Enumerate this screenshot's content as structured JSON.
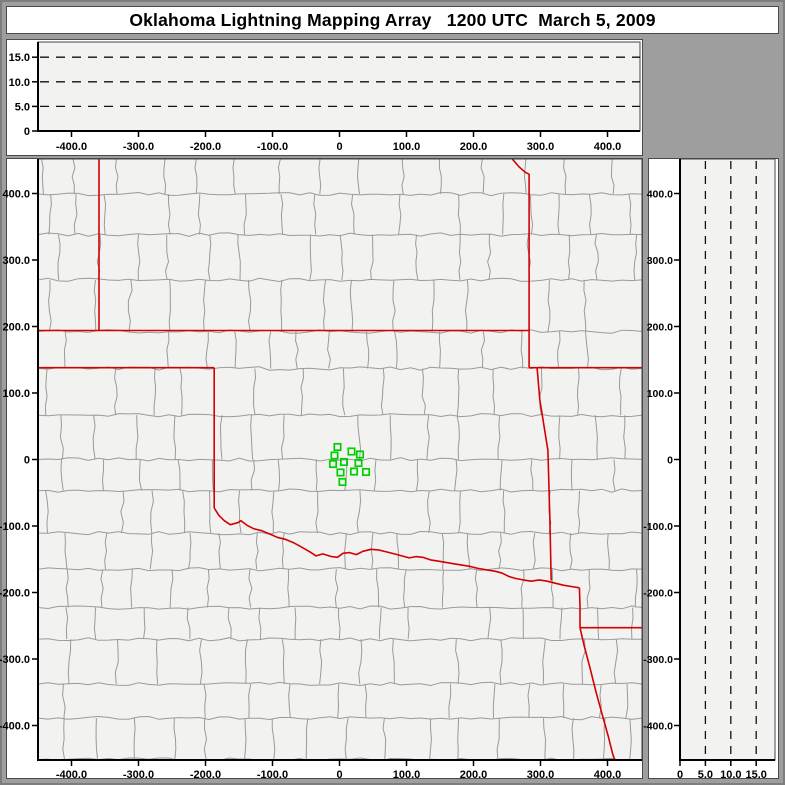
{
  "window": {
    "title": "Oklahoma Lightning Mapping Array   1200 UTC  March 5, 2009"
  },
  "colors": {
    "frame": "#9e9e9e",
    "card_bg": "#ffffff",
    "card_border": "#4a4a4a",
    "plot_bg": "#f2f2f1",
    "plot_border": "#444444",
    "axis": "#000000",
    "dashed_gridline": "#111111",
    "county_line": "#9a9a9a",
    "state_line": "#d40000",
    "station_marker": "#00cf00",
    "text": "#000000"
  },
  "chart_data": [
    {
      "id": "ew_altitude_cross_section",
      "type": "scatter",
      "region": "top",
      "description": "East-West vertical cross section, altitude (km) vs east-west distance (km); no lightning sources plotted at this time",
      "xlim": [
        -451,
        453
      ],
      "ylim": [
        0,
        18.1
      ],
      "xticks": {
        "values": [
          -400,
          -300,
          -200,
          -100,
          0,
          100,
          200,
          300,
          400
        ],
        "labels": [
          "-400.0",
          "-300.0",
          "-200.0",
          "-100.0",
          "0",
          "100.0",
          "200.0",
          "300.0",
          "400.0"
        ]
      },
      "yticks": {
        "values": [
          15,
          10,
          5,
          0
        ],
        "labels": [
          "15.0",
          "10.0",
          "5.0",
          "0"
        ]
      },
      "dashed_gridlines_alt_km": [
        5,
        10,
        15
      ],
      "points": []
    },
    {
      "id": "plan_view_map",
      "type": "scatter",
      "region": "center",
      "description": "Plan view map centered on central Oklahoma with county lines, red state boundaries, and green LMA station squares; no lightning sources plotted",
      "xlim": [
        -451,
        453
      ],
      "ylim": [
        -452,
        453
      ],
      "xticks": {
        "values": [
          -400,
          -300,
          -200,
          -100,
          0,
          100,
          200,
          300,
          400
        ],
        "labels": [
          "-400.0",
          "-300.0",
          "-200.0",
          "-100.0",
          "0",
          "100.0",
          "200.0",
          "300.0",
          "400.0"
        ]
      },
      "yticks": {
        "values": [
          400,
          300,
          200,
          100,
          0,
          -100,
          -200,
          -300,
          -400
        ],
        "labels": [
          "400.0",
          "300.0",
          "200.0",
          "100.0",
          "0",
          "-100.0",
          "-200.0",
          "-300.0",
          "-400.0"
        ]
      },
      "lma_stations_km": [
        [
          -3.0,
          18.8
        ],
        [
          17.9,
          12.0
        ],
        [
          30.6,
          7.5
        ],
        [
          -7.5,
          6.0
        ],
        [
          6.7,
          -3.8
        ],
        [
          -9.7,
          -6.8
        ],
        [
          28.4,
          -5.3
        ],
        [
          1.5,
          -19.5
        ],
        [
          21.6,
          -18.0
        ],
        [
          39.6,
          -18.8
        ],
        [
          4.5,
          -33.8
        ]
      ],
      "state_boundaries_km": {
        "co_ks_border": [
          [
            -359,
            453
          ],
          [
            -359,
            194
          ]
        ],
        "ks_ok_border_37N": [
          [
            -451,
            194
          ],
          [
            283,
            194
          ]
        ],
        "ok_tx_panhandle_36_5N": [
          [
            -451,
            138
          ],
          [
            -187,
            138
          ]
        ],
        "ok_tx_100W_meridian": [
          [
            -187,
            138
          ],
          [
            -187,
            -73
          ]
        ],
        "red_river_ok_tx": [
          [
            -187,
            -73
          ],
          [
            -180,
            -84
          ],
          [
            -172,
            -92
          ],
          [
            -163,
            -98
          ],
          [
            -152,
            -95
          ],
          [
            -147,
            -92
          ],
          [
            -138,
            -99
          ],
          [
            -128,
            -104
          ],
          [
            -116,
            -107
          ],
          [
            -104,
            -112
          ],
          [
            -93,
            -117
          ],
          [
            -81,
            -120
          ],
          [
            -69,
            -125
          ],
          [
            -56,
            -132
          ],
          [
            -44,
            -139
          ],
          [
            -35,
            -145
          ],
          [
            -25,
            -142
          ],
          [
            -12,
            -146
          ],
          [
            -3,
            -147
          ],
          [
            5,
            -141
          ],
          [
            15,
            -140
          ],
          [
            25,
            -143
          ],
          [
            35,
            -138
          ],
          [
            47,
            -135
          ],
          [
            58,
            -136
          ],
          [
            70,
            -139
          ],
          [
            82,
            -142
          ],
          [
            93,
            -145
          ],
          [
            104,
            -148
          ],
          [
            114,
            -146
          ],
          [
            124,
            -147
          ],
          [
            136,
            -151
          ],
          [
            148,
            -153
          ],
          [
            160,
            -155
          ],
          [
            172,
            -157
          ],
          [
            184,
            -159
          ],
          [
            196,
            -161
          ],
          [
            208,
            -164
          ],
          [
            220,
            -166
          ],
          [
            232,
            -168
          ],
          [
            243,
            -171
          ],
          [
            253,
            -176
          ],
          [
            263,
            -179
          ],
          [
            274,
            -181
          ],
          [
            286,
            -183
          ],
          [
            298,
            -181
          ],
          [
            310,
            -183
          ],
          [
            322,
            -186
          ],
          [
            334,
            -189
          ],
          [
            346,
            -191
          ],
          [
            358,
            -193
          ]
        ],
        "ks_mo_border": [
          [
            257,
            453
          ],
          [
            268,
            440
          ],
          [
            277,
            432
          ],
          [
            283,
            429
          ],
          [
            283,
            138
          ]
        ],
        "mo_ar_border_36_5N": [
          [
            283,
            138
          ],
          [
            452,
            138
          ]
        ],
        "ok_ar_border": [
          [
            295,
            138
          ],
          [
            299,
            90
          ],
          [
            311,
            14
          ],
          [
            314,
            -91
          ],
          [
            316,
            -182
          ]
        ],
        "tx_ar_border": [
          [
            358,
            -193
          ],
          [
            359,
            -220
          ],
          [
            359,
            -253
          ]
        ],
        "ar_la_border_33N": [
          [
            359,
            -253
          ],
          [
            452,
            -253
          ]
        ],
        "tx_la_border": [
          [
            359,
            -253
          ],
          [
            365,
            -279
          ],
          [
            374,
            -314
          ],
          [
            383,
            -350
          ],
          [
            392,
            -383
          ],
          [
            401,
            -416
          ],
          [
            408,
            -444
          ],
          [
            411,
            -452
          ]
        ]
      },
      "points": []
    },
    {
      "id": "ns_altitude_cross_section",
      "type": "scatter",
      "region": "right",
      "description": "North-South vertical cross section, north-south distance (km) vs altitude (km); no lightning sources plotted at this time",
      "xlim": [
        0,
        18.7
      ],
      "ylim": [
        -452,
        453
      ],
      "xticks": {
        "values": [
          0,
          5,
          10,
          15
        ],
        "labels": [
          "0",
          "5.0",
          "10.0",
          "15.0"
        ]
      },
      "yticks": {
        "values": [
          400,
          300,
          200,
          100,
          0,
          -100,
          -200,
          -300,
          -400
        ],
        "labels": [
          "400.0",
          "300.0",
          "200.0",
          "100.0",
          "0",
          "-100.0",
          "-200.0",
          "-300.0",
          "-400.0"
        ]
      },
      "dashed_gridlines_alt_km": [
        5,
        10,
        15
      ],
      "points": []
    }
  ]
}
